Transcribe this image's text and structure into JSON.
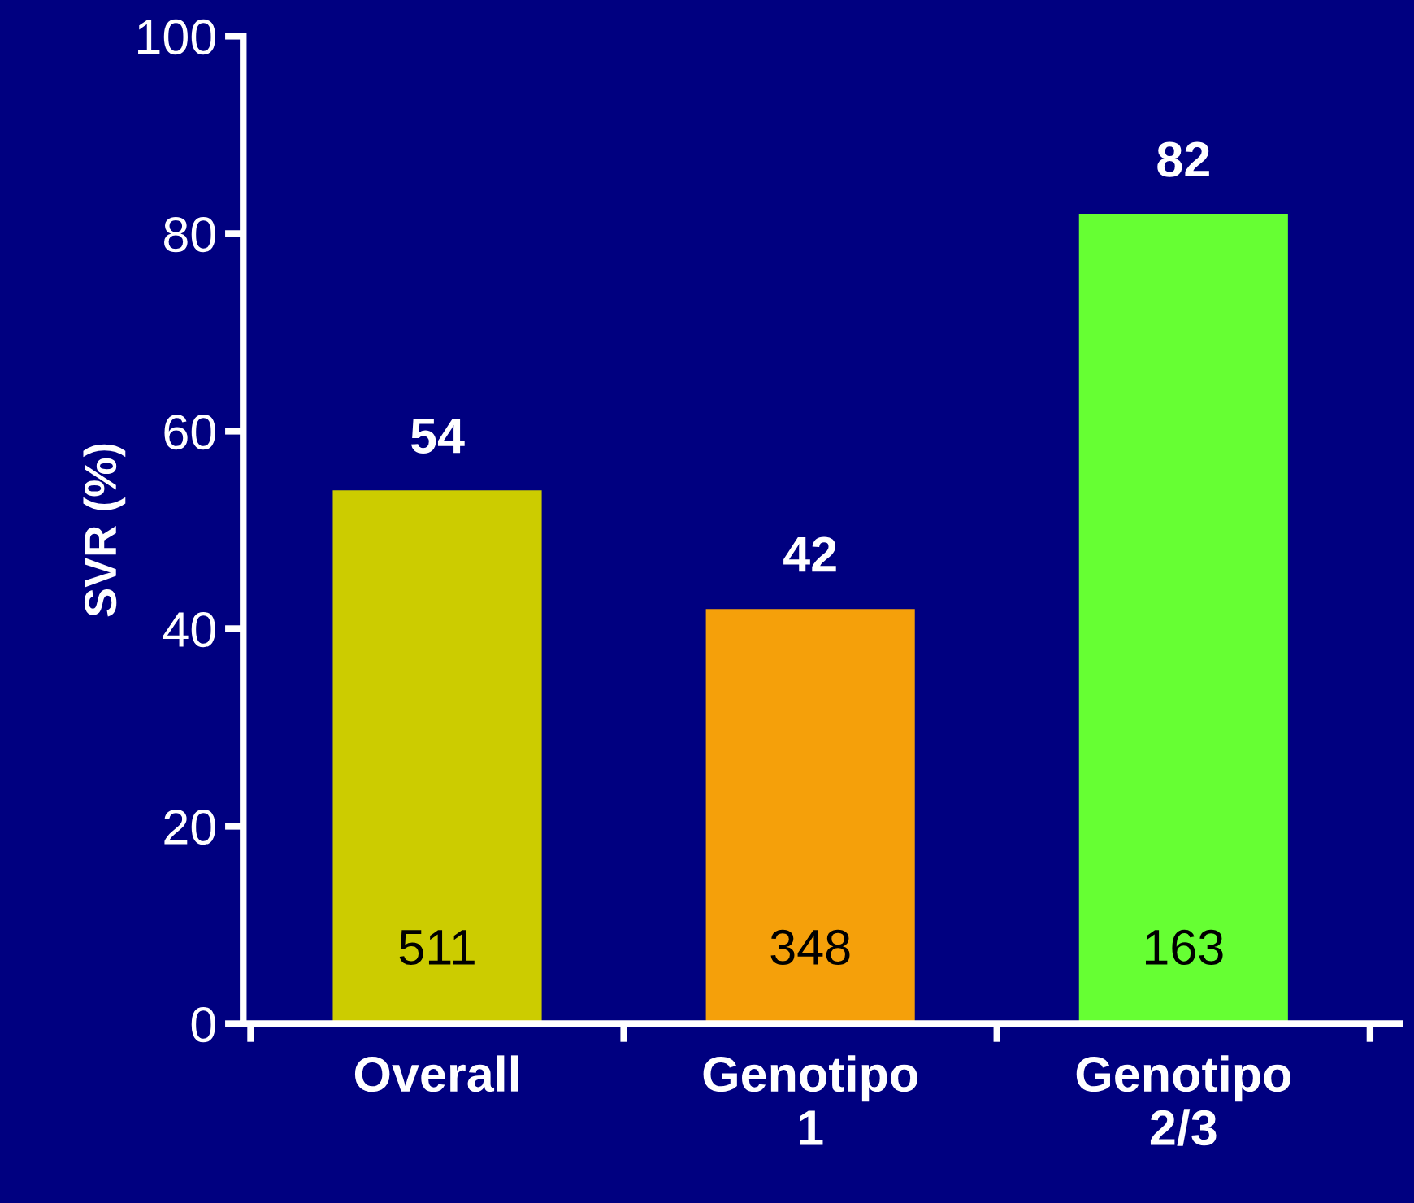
{
  "chart_data": {
    "type": "bar",
    "ylabel": "SVR (%)",
    "categories": [
      "Overall",
      "Genotipo\n1",
      "Genotipo\n2/3"
    ],
    "values": [
      54,
      42,
      82
    ],
    "colors": [
      "#cccc00",
      "#f5a00a",
      "#66ff33"
    ],
    "data_labels": true,
    "ylim": [
      0,
      100
    ],
    "yticks": [
      0,
      20,
      40,
      60,
      80,
      100
    ],
    "grid": false,
    "legend": false,
    "annotations": [
      "511",
      "348",
      "163"
    ]
  }
}
